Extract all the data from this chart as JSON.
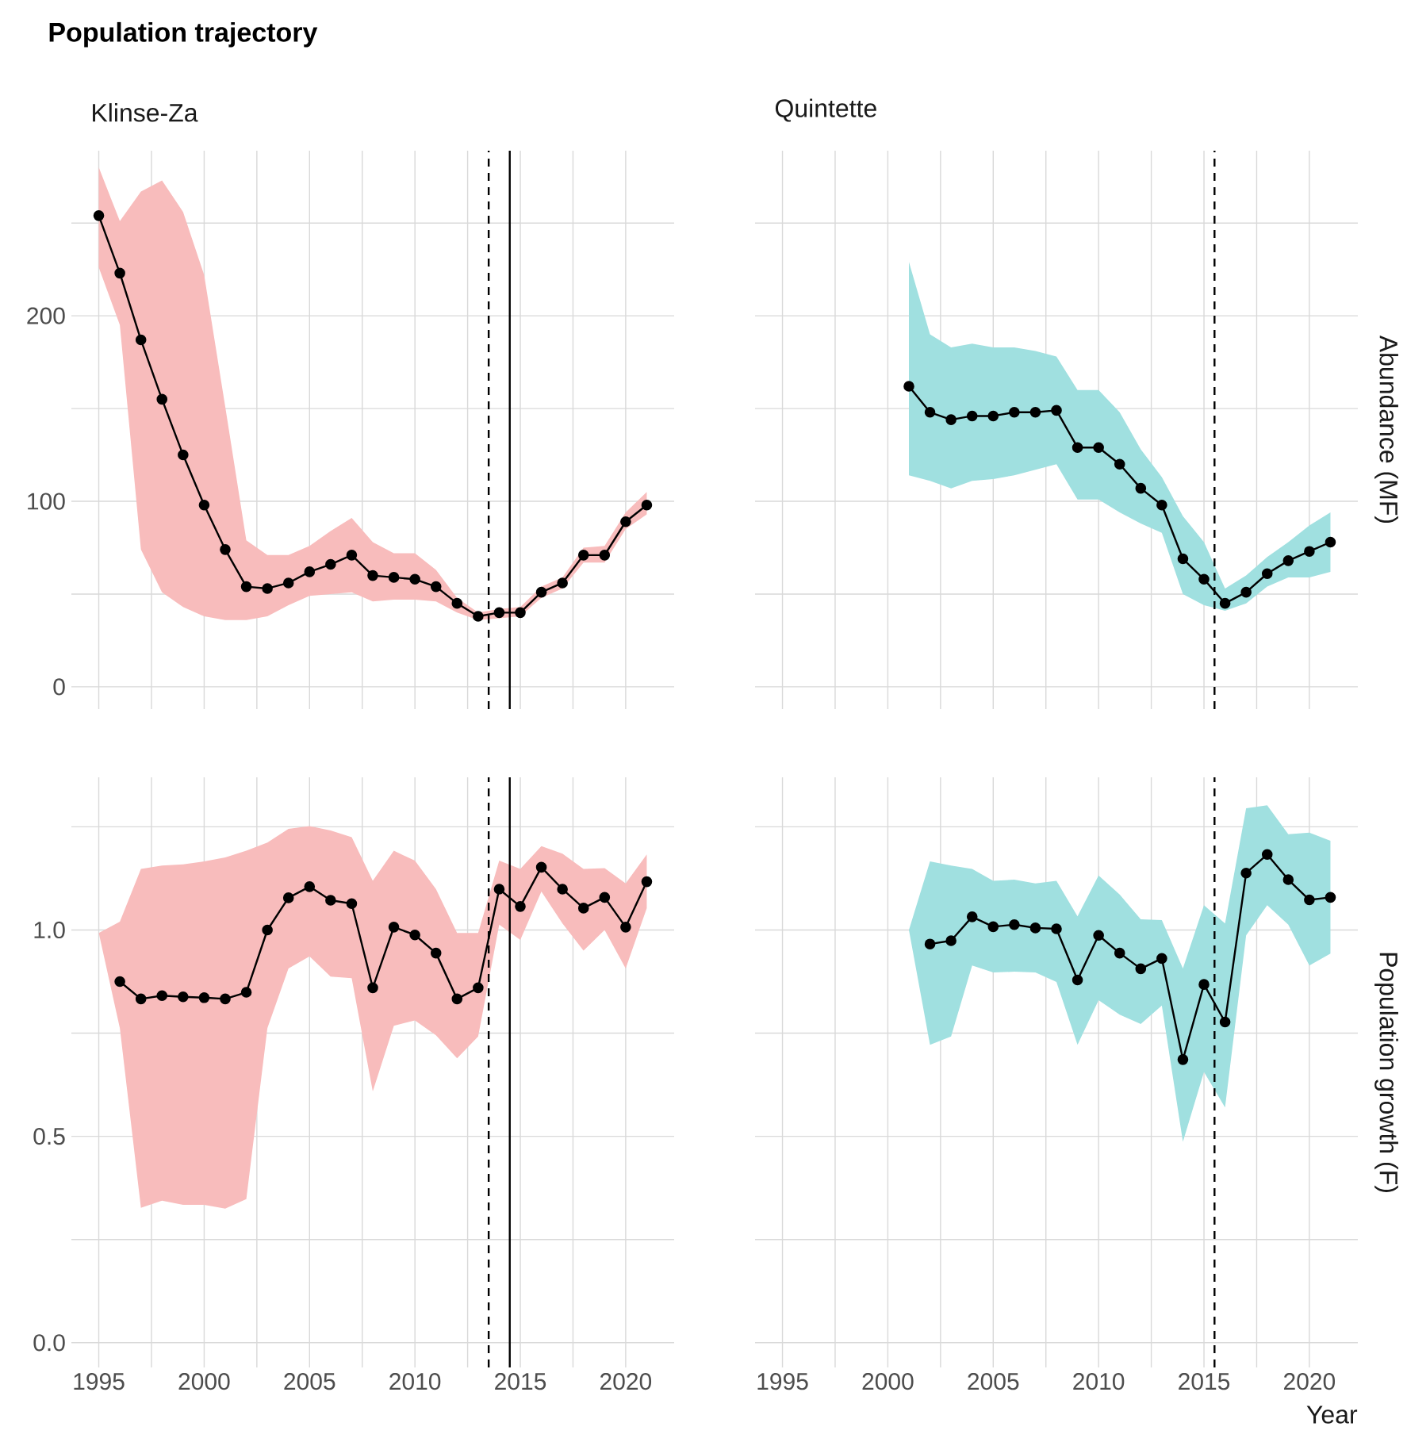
{
  "chart_data": [
    {
      "type": "line",
      "title": "Population trajectory",
      "subtitle": "Klinse-Za",
      "grid": true,
      "marker": "circle",
      "line_style": "solid",
      "tick_labels": "y",
      "xlim": [
        1993.7,
        2022.3
      ],
      "ylim": [
        -12,
        289
      ],
      "xticks": [
        1995,
        {
          "value": 1997.5,
          "label": null
        },
        2000,
        {
          "value": 2002.5,
          "label": null
        },
        2005,
        {
          "value": 2007.5,
          "label": null
        },
        2010,
        {
          "value": 2012.5,
          "label": null
        },
        2015,
        {
          "value": 2017.5,
          "label": null
        },
        2020
      ],
      "yticks": [
        0,
        {
          "value": 50,
          "label": null
        },
        100,
        {
          "value": 150,
          "label": null
        },
        200,
        {
          "value": 250,
          "label": null
        }
      ],
      "x": [
        1995,
        1996,
        1997,
        1998,
        1999,
        2000,
        2001,
        2002,
        2003,
        2004,
        2005,
        2006,
        2007,
        2008,
        2009,
        2010,
        2011,
        2012,
        2013,
        2014,
        2015,
        2016,
        2017,
        2018,
        2019,
        2020,
        2021
      ],
      "series": [
        {
          "color": "#000000",
          "values": [
            254,
            223,
            187,
            155,
            125,
            98,
            74,
            54,
            53,
            56,
            62,
            66,
            71,
            60,
            59,
            58,
            54,
            45,
            38,
            40,
            40,
            51,
            56,
            71,
            71,
            89,
            98
          ],
          "upper": [
            280,
            251,
            267,
            273,
            256,
            222,
            151,
            79,
            71,
            71,
            76,
            84,
            91,
            78,
            72,
            72,
            63,
            48,
            40,
            42,
            43,
            54,
            59,
            75,
            76,
            94,
            105
          ],
          "lower": [
            226,
            195,
            74,
            51,
            43,
            38,
            36,
            36,
            38,
            44,
            49,
            50,
            51,
            46,
            47,
            47,
            46,
            40,
            36,
            37,
            38,
            48,
            53,
            67,
            67,
            85,
            93
          ]
        }
      ],
      "ref_lines": [
        {
          "axis": "x",
          "value": 2013.5,
          "line_style": "dashed"
        },
        {
          "axis": "x",
          "value": 2014.5,
          "line_style": "solid"
        }
      ]
    },
    {
      "type": "line",
      "title": "Quintette",
      "ylabel": "Abundance (MF)",
      "grid": true,
      "marker": "circle",
      "line_style": "solid",
      "tick_labels": false,
      "xlim": [
        1993.7,
        2022.3
      ],
      "ylim": [
        -12,
        289
      ],
      "xticks": [
        1995,
        {
          "value": 1997.5,
          "label": null
        },
        2000,
        {
          "value": 2002.5,
          "label": null
        },
        2005,
        {
          "value": 2007.5,
          "label": null
        },
        2010,
        {
          "value": 2012.5,
          "label": null
        },
        2015,
        {
          "value": 2017.5,
          "label": null
        },
        2020
      ],
      "yticks": [
        0,
        {
          "value": 50,
          "label": null
        },
        100,
        {
          "value": 150,
          "label": null
        },
        200,
        {
          "value": 250,
          "label": null
        }
      ],
      "x": [
        2001,
        2002,
        2003,
        2004,
        2005,
        2006,
        2007,
        2008,
        2009,
        2010,
        2011,
        2012,
        2013,
        2014,
        2015,
        2016,
        2017,
        2018,
        2019,
        2020,
        2021
      ],
      "series": [
        {
          "color": "#000000",
          "values": [
            162,
            148,
            144,
            146,
            146,
            148,
            148,
            149,
            129,
            129,
            120,
            107,
            98,
            69,
            58,
            45,
            51,
            61,
            68,
            73,
            78
          ],
          "upper": [
            229,
            190,
            183,
            185,
            183,
            183,
            181,
            178,
            160,
            160,
            148,
            128,
            113,
            92,
            78,
            53,
            60,
            70,
            78,
            87,
            94
          ],
          "lower": [
            114,
            111,
            107,
            111,
            112,
            114,
            117,
            120,
            101,
            101,
            94,
            88,
            83,
            50,
            44,
            41,
            45,
            54,
            59,
            59,
            62
          ]
        }
      ],
      "ref_lines": [
        {
          "axis": "x",
          "value": 2015.5,
          "line_style": "dashed"
        }
      ]
    },
    {
      "type": "line",
      "grid": true,
      "marker": "circle",
      "line_style": "solid",
      "xlim": [
        1993.7,
        2022.3
      ],
      "ylim": [
        -0.06,
        1.37
      ],
      "xticks": [
        1995,
        {
          "value": 1997.5,
          "label": null
        },
        2000,
        {
          "value": 2002.5,
          "label": null
        },
        2005,
        {
          "value": 2007.5,
          "label": null
        },
        2010,
        {
          "value": 2012.5,
          "label": null
        },
        2015,
        {
          "value": 2017.5,
          "label": null
        },
        2020
      ],
      "yticks": [
        {
          "value": 0,
          "label": "0.0"
        },
        {
          "value": 0.25,
          "label": null
        },
        {
          "value": 0.5,
          "label": "0.5"
        },
        {
          "value": 0.75,
          "label": null
        },
        {
          "value": 1,
          "label": "1.0"
        },
        {
          "value": 1.25,
          "label": null
        }
      ],
      "x": [
        1995,
        1996,
        1997,
        1998,
        1999,
        2000,
        2001,
        2002,
        2003,
        2004,
        2005,
        2006,
        2007,
        2008,
        2009,
        2010,
        2011,
        2012,
        2013,
        2014,
        2015,
        2016,
        2017,
        2018,
        2019,
        2020,
        2021
      ],
      "series": [
        {
          "color": "#000000",
          "values": [
            null,
            0.875,
            0.833,
            0.841,
            0.838,
            0.836,
            0.833,
            0.849,
            1.0,
            1.078,
            1.105,
            1.072,
            1.064,
            0.86,
            1.007,
            0.988,
            0.944,
            0.833,
            0.86,
            1.099,
            1.057,
            1.152,
            1.099,
            1.053,
            1.079,
            1.007,
            1.117
          ],
          "upper": [
            0.993,
            1.02,
            1.148,
            1.156,
            1.159,
            1.166,
            1.176,
            1.192,
            1.212,
            1.245,
            1.252,
            1.241,
            1.225,
            1.119,
            1.192,
            1.168,
            1.099,
            0.993,
            0.993,
            1.168,
            1.148,
            1.203,
            1.185,
            1.148,
            1.15,
            1.113,
            1.183
          ],
          "lower": [
            0.993,
            0.762,
            0.327,
            0.344,
            0.334,
            0.334,
            0.325,
            0.348,
            0.762,
            0.907,
            0.936,
            0.887,
            0.883,
            0.609,
            0.768,
            0.781,
            0.745,
            0.689,
            0.742,
            1.013,
            0.976,
            1.093,
            1.016,
            0.95,
            1.0,
            0.907,
            1.053
          ]
        }
      ],
      "ref_lines": [
        {
          "axis": "x",
          "value": 2013.5,
          "line_style": "dashed"
        },
        {
          "axis": "x",
          "value": 2014.5,
          "line_style": "solid"
        }
      ]
    },
    {
      "type": "line",
      "ylabel": "Population growth (F)",
      "xlabel": "Year",
      "grid": true,
      "marker": "circle",
      "line_style": "solid",
      "tick_labels": "x",
      "xlim": [
        1993.7,
        2022.3
      ],
      "ylim": [
        -0.06,
        1.37
      ],
      "xticks": [
        1995,
        {
          "value": 1997.5,
          "label": null
        },
        2000,
        {
          "value": 2002.5,
          "label": null
        },
        2005,
        {
          "value": 2007.5,
          "label": null
        },
        2010,
        {
          "value": 2012.5,
          "label": null
        },
        2015,
        {
          "value": 2017.5,
          "label": null
        },
        2020
      ],
      "yticks": [
        0,
        0.25,
        0.5,
        0.75,
        1,
        1.25
      ],
      "x": [
        2001,
        2002,
        2003,
        2004,
        2005,
        2006,
        2007,
        2008,
        2009,
        2010,
        2011,
        2012,
        2013,
        2014,
        2015,
        2016,
        2017,
        2018,
        2019,
        2020,
        2021
      ],
      "series": [
        {
          "color": "#000000",
          "values": [
            null,
            0.966,
            0.974,
            1.032,
            1.008,
            1.013,
            1.005,
            1.003,
            0.879,
            0.987,
            0.944,
            0.906,
            0.931,
            0.686,
            0.868,
            0.777,
            1.138,
            1.183,
            1.122,
            1.073,
            1.079
          ],
          "upper": [
            1.0,
            1.166,
            1.156,
            1.148,
            1.119,
            1.122,
            1.113,
            1.119,
            1.033,
            1.132,
            1.086,
            1.026,
            1.024,
            0.907,
            1.06,
            1.016,
            1.295,
            1.302,
            1.232,
            1.236,
            1.216
          ],
          "lower": [
            1.0,
            0.722,
            0.742,
            0.914,
            0.897,
            0.899,
            0.897,
            0.874,
            0.722,
            0.83,
            0.795,
            0.772,
            0.817,
            0.487,
            0.656,
            0.57,
            0.987,
            1.06,
            1.013,
            0.914,
            0.943
          ]
        }
      ],
      "ref_lines": [
        {
          "axis": "x",
          "value": 2015.5,
          "line_style": "dashed"
        }
      ]
    }
  ]
}
